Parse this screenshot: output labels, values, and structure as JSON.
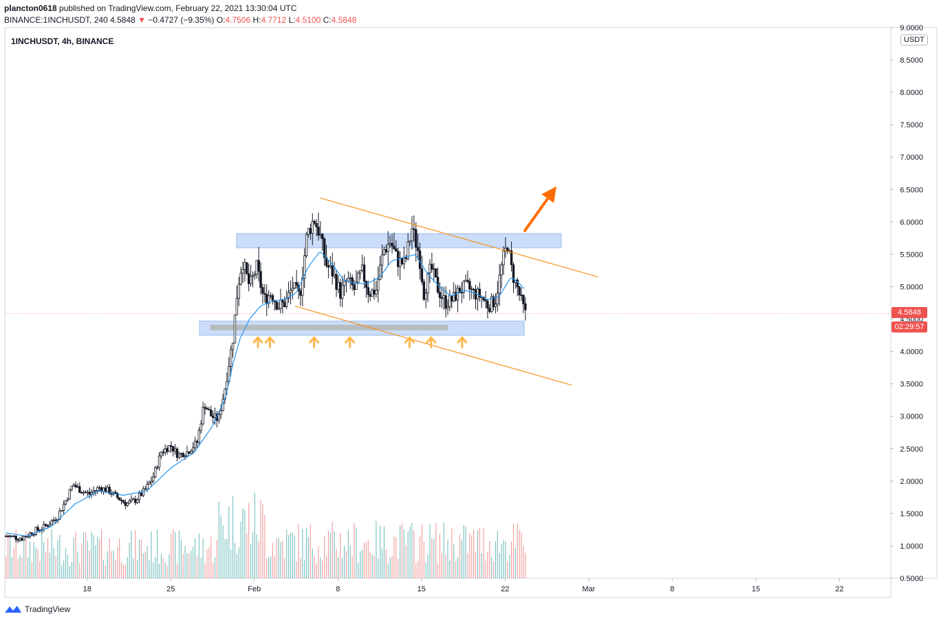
{
  "header": {
    "publisher": "plancton0618",
    "published_text": "published on TradingView.com, February 22, 2021 13:30:04 UTC",
    "symbol_line": "BINANCE:1INCHUSDT, 240",
    "last": "4.5848",
    "change": "−0.4727 (−9.35%)",
    "o_label": "O:",
    "o": "4.7506",
    "h_label": "H:",
    "h": "4.7712",
    "l_label": "L:",
    "l": "4.5100",
    "c_label": "C:",
    "c": "4.5848"
  },
  "pane_label": "1INCHUSDT, 4h, BINANCE",
  "currency_label": "USDT",
  "last_price_tag": "4.5848",
  "countdown_tag": "02:29:57",
  "footer_brand": "TradingView",
  "colors": {
    "up": "#131722",
    "down": "#131722",
    "ma": "#2196f3",
    "zone": "#a9c6f4",
    "trend": "#f7931a",
    "arrow": "#ff6d00",
    "small_arrow": "#ffb74d",
    "support_bar": "#b5b5b5",
    "vol_up": "#5fb3b3",
    "vol_down": "#ef8a8a",
    "tag": "#ef5350"
  },
  "chart_data": {
    "type": "candlestick",
    "title": "1INCHUSDT, 4h, BINANCE",
    "y_axis_ticks": [
      "0.5000",
      "1.0000",
      "1.5000",
      "2.0000",
      "2.5000",
      "3.0000",
      "3.5000",
      "4.0000",
      "4.5000",
      "5.0000",
      "5.5000",
      "6.0000",
      "6.5000",
      "7.0000",
      "7.5000",
      "8.0000",
      "8.5000",
      "9.0000"
    ],
    "y_range": [
      0.5,
      9.0
    ],
    "x_axis_ticks": [
      {
        "label": "18",
        "day": 18
      },
      {
        "label": "25",
        "day": 25
      },
      {
        "label": "Feb",
        "day": 32
      },
      {
        "label": "8",
        "day": 39
      },
      {
        "label": "15",
        "day": 46
      },
      {
        "label": "22",
        "day": 53
      },
      {
        "label": "Mar",
        "day": 60
      },
      {
        "label": "8",
        "day": 67
      },
      {
        "label": "15",
        "day": 74
      },
      {
        "label": "22",
        "day": 81
      }
    ],
    "x_range_days": [
      11.1,
      85.3
    ],
    "price_path": [
      [
        11.2,
        1.15
      ],
      [
        12.5,
        1.12
      ],
      [
        13.5,
        1.22
      ],
      [
        14.5,
        1.3
      ],
      [
        15.5,
        1.45
      ],
      [
        16.2,
        1.7
      ],
      [
        16.8,
        1.95
      ],
      [
        17.5,
        1.85
      ],
      [
        18.2,
        1.8
      ],
      [
        19,
        1.9
      ],
      [
        19.8,
        1.85
      ],
      [
        20.5,
        1.75
      ],
      [
        21.3,
        1.65
      ],
      [
        22,
        1.7
      ],
      [
        22.8,
        1.85
      ],
      [
        23.5,
        2.05
      ],
      [
        24.2,
        2.45
      ],
      [
        25,
        2.55
      ],
      [
        25.6,
        2.4
      ],
      [
        26.4,
        2.45
      ],
      [
        27.2,
        2.6
      ],
      [
        27.8,
        3.2
      ],
      [
        28.4,
        3.0
      ],
      [
        29,
        2.95
      ],
      [
        29.6,
        3.5
      ],
      [
        30.2,
        4.2
      ],
      [
        30.6,
        5.0
      ],
      [
        31,
        5.4
      ],
      [
        31.6,
        5.0
      ],
      [
        32.2,
        5.3
      ],
      [
        32.8,
        4.8
      ],
      [
        33.4,
        4.9
      ],
      [
        34,
        4.7
      ],
      [
        34.6,
        4.75
      ],
      [
        35.2,
        5.0
      ],
      [
        35.8,
        4.85
      ],
      [
        36.4,
        5.8
      ],
      [
        37,
        6.05
      ],
      [
        37.5,
        5.8
      ],
      [
        38,
        5.35
      ],
      [
        38.6,
        5.2
      ],
      [
        39.2,
        4.9
      ],
      [
        39.8,
        5.1
      ],
      [
        40.4,
        4.95
      ],
      [
        41,
        5.25
      ],
      [
        41.6,
        4.9
      ],
      [
        42.2,
        4.95
      ],
      [
        42.8,
        5.55
      ],
      [
        43.4,
        5.7
      ],
      [
        44,
        5.4
      ],
      [
        44.6,
        5.35
      ],
      [
        45.2,
        5.9
      ],
      [
        45.8,
        5.5
      ],
      [
        46.2,
        4.9
      ],
      [
        46.8,
        5.3
      ],
      [
        47.4,
        4.95
      ],
      [
        48,
        4.75
      ],
      [
        48.6,
        4.8
      ],
      [
        49.2,
        4.95
      ],
      [
        49.8,
        5.0
      ],
      [
        50.4,
        4.9
      ],
      [
        51,
        4.85
      ],
      [
        51.6,
        4.7
      ],
      [
        52.2,
        4.8
      ],
      [
        52.8,
        5.4
      ],
      [
        53.2,
        5.65
      ],
      [
        53.6,
        5.2
      ],
      [
        54,
        5.0
      ],
      [
        54.4,
        4.75
      ],
      [
        54.7,
        4.58
      ]
    ],
    "ma_path": [
      [
        11.2,
        1.2
      ],
      [
        13,
        1.15
      ],
      [
        15,
        1.3
      ],
      [
        17,
        1.65
      ],
      [
        19,
        1.85
      ],
      [
        21,
        1.78
      ],
      [
        23,
        1.85
      ],
      [
        25,
        2.2
      ],
      [
        27,
        2.45
      ],
      [
        28.5,
        2.85
      ],
      [
        29.6,
        3.3
      ],
      [
        30.2,
        3.8
      ],
      [
        30.8,
        4.2
      ],
      [
        31.6,
        4.5
      ],
      [
        32.5,
        4.7
      ],
      [
        33.5,
        4.78
      ],
      [
        34.5,
        4.8
      ],
      [
        35.5,
        4.9
      ],
      [
        36.5,
        5.3
      ],
      [
        37.5,
        5.55
      ],
      [
        38.5,
        5.35
      ],
      [
        39.5,
        5.1
      ],
      [
        40.5,
        5.05
      ],
      [
        41.5,
        5.05
      ],
      [
        42.5,
        5.15
      ],
      [
        43.5,
        5.4
      ],
      [
        44.5,
        5.45
      ],
      [
        45.5,
        5.5
      ],
      [
        46.5,
        5.2
      ],
      [
        47.5,
        5.0
      ],
      [
        48.5,
        4.85
      ],
      [
        49.5,
        4.95
      ],
      [
        50.5,
        4.9
      ],
      [
        51.5,
        4.8
      ],
      [
        52.5,
        4.85
      ],
      [
        53.5,
        5.15
      ],
      [
        54.2,
        5.05
      ],
      [
        54.7,
        4.95
      ]
    ],
    "resistance_zone": {
      "day_start": 30.5,
      "day_end": 57.7,
      "low": 5.6,
      "high": 5.82
    },
    "support_zone": {
      "day_start": 27.4,
      "day_end": 54.6,
      "low": 4.25,
      "high": 4.47
    },
    "support_bar": {
      "day_start": 28.3,
      "day_end": 48.2,
      "price": 4.37
    },
    "upper_trendline": {
      "start": [
        37.5,
        6.37
      ],
      "end": [
        60.8,
        5.15
      ]
    },
    "lower_trendline": {
      "start": [
        35.4,
        4.7
      ],
      "end": [
        58.6,
        3.48
      ]
    },
    "bounce_arrows_days": [
      32.3,
      33.3,
      37.0,
      40.0,
      45.0,
      46.8,
      49.4
    ],
    "breakout_arrow": {
      "start": [
        54.6,
        5.85
      ],
      "end": [
        57.3,
        6.55
      ]
    },
    "last_price": 4.5848
  }
}
